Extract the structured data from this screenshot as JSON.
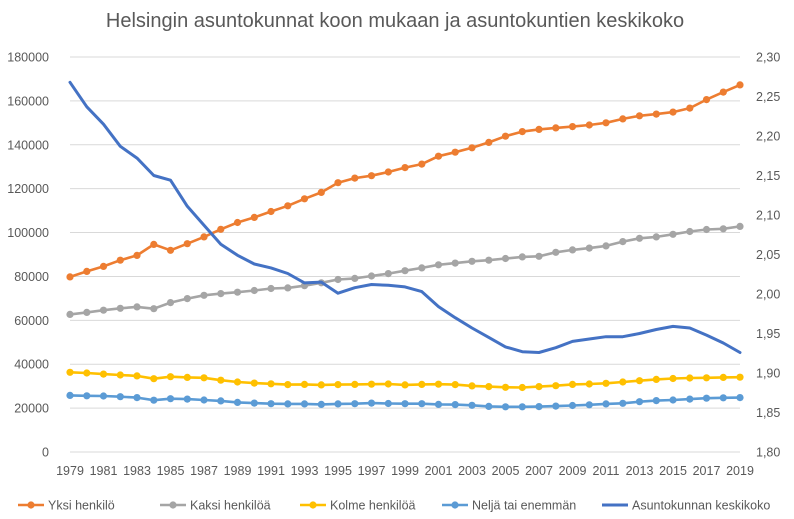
{
  "chart_data": {
    "type": "line",
    "title": "Helsingin asuntokunnat koon mukaan ja asuntokuntien keskikoko",
    "x": [
      1979,
      1980,
      1981,
      1982,
      1983,
      1984,
      1985,
      1986,
      1987,
      1988,
      1989,
      1990,
      1991,
      1992,
      1993,
      1994,
      1995,
      1996,
      1997,
      1998,
      1999,
      2000,
      2001,
      2002,
      2003,
      2004,
      2005,
      2006,
      2007,
      2008,
      2009,
      2010,
      2011,
      2012,
      2013,
      2014,
      2015,
      2016,
      2017,
      2018,
      2019
    ],
    "x_tick_labels": [
      "1979",
      "1981",
      "1983",
      "1985",
      "1987",
      "1989",
      "1991",
      "1993",
      "1995",
      "1997",
      "1999",
      "2001",
      "2003",
      "2005",
      "2007",
      "2009",
      "2011",
      "2013",
      "2015",
      "2017",
      "2019"
    ],
    "y_left": {
      "min": 0,
      "max": 180000,
      "step": 20000,
      "tick_labels": [
        "0",
        "20000",
        "40000",
        "60000",
        "80000",
        "100000",
        "120000",
        "140000",
        "160000",
        "180000"
      ]
    },
    "y_right": {
      "min": 1.8,
      "max": 2.3,
      "step": 0.05,
      "tick_labels": [
        "1,80",
        "1,85",
        "1,90",
        "1,95",
        "2,00",
        "2,05",
        "2,10",
        "2,15",
        "2,20",
        "2,25",
        "2,30"
      ]
    },
    "grid": true,
    "legend_position": "bottom",
    "series": [
      {
        "name": "Yksi henkilö",
        "axis": "left",
        "color": "#ED7D31",
        "markers": true,
        "values": [
          79800,
          82300,
          84600,
          87400,
          89600,
          94600,
          91900,
          94900,
          98000,
          101500,
          104600,
          106900,
          109600,
          112200,
          115400,
          118300,
          122700,
          124800,
          125900,
          127600,
          129600,
          131200,
          134800,
          136600,
          138600,
          141100,
          143900,
          146000,
          147000,
          147700,
          148300,
          149000,
          150000,
          151800,
          153200,
          154000,
          154900,
          156700,
          160600,
          164000,
          167300
        ]
      },
      {
        "name": "Kaksi henkilöä",
        "axis": "left",
        "color": "#A5A5A5",
        "markers": true,
        "values": [
          62700,
          63600,
          64600,
          65500,
          66100,
          65300,
          68100,
          69900,
          71400,
          72200,
          72800,
          73600,
          74500,
          74800,
          75800,
          77100,
          78600,
          79100,
          80200,
          81300,
          82600,
          83900,
          85300,
          86100,
          86900,
          87400,
          88200,
          88900,
          89200,
          91000,
          92100,
          92900,
          93900,
          95900,
          97400,
          98000,
          99200,
          100500,
          101400,
          101700,
          102800
        ]
      },
      {
        "name": "Kolme henkilöä",
        "axis": "left",
        "color": "#FFC000",
        "markers": true,
        "values": [
          36300,
          36000,
          35500,
          35100,
          34700,
          33400,
          34300,
          34000,
          33800,
          32700,
          31900,
          31400,
          31100,
          30700,
          30800,
          30600,
          30700,
          30800,
          30900,
          31000,
          30600,
          30800,
          30900,
          30700,
          30100,
          29800,
          29500,
          29400,
          29800,
          30200,
          30800,
          31000,
          31300,
          31900,
          32500,
          33100,
          33500,
          33700,
          33800,
          34000,
          34100
        ]
      },
      {
        "name": "Neljä tai enemmän",
        "axis": "left",
        "color": "#5B9BD5",
        "markers": true,
        "values": [
          25800,
          25600,
          25500,
          25200,
          24800,
          23600,
          24300,
          24100,
          23700,
          23300,
          22600,
          22300,
          22000,
          21900,
          21900,
          21700,
          21900,
          22000,
          22300,
          22100,
          22000,
          22000,
          21700,
          21600,
          21300,
          20800,
          20600,
          20600,
          20700,
          20900,
          21200,
          21500,
          21900,
          22200,
          22900,
          23400,
          23700,
          24100,
          24500,
          24700,
          24800
        ]
      },
      {
        "name": "Asuntokunnan keskikoko",
        "axis": "right",
        "color": "#4472C4",
        "markers": false,
        "values": [
          2.268,
          2.237,
          2.215,
          2.187,
          2.172,
          2.15,
          2.144,
          2.111,
          2.087,
          2.063,
          2.049,
          2.038,
          2.033,
          2.026,
          2.014,
          2.015,
          2.001,
          2.008,
          2.012,
          2.011,
          2.009,
          2.003,
          1.984,
          1.97,
          1.957,
          1.945,
          1.933,
          1.927,
          1.926,
          1.932,
          1.94,
          1.943,
          1.946,
          1.946,
          1.95,
          1.955,
          1.959,
          1.957,
          1.948,
          1.938,
          1.926
        ]
      }
    ]
  }
}
